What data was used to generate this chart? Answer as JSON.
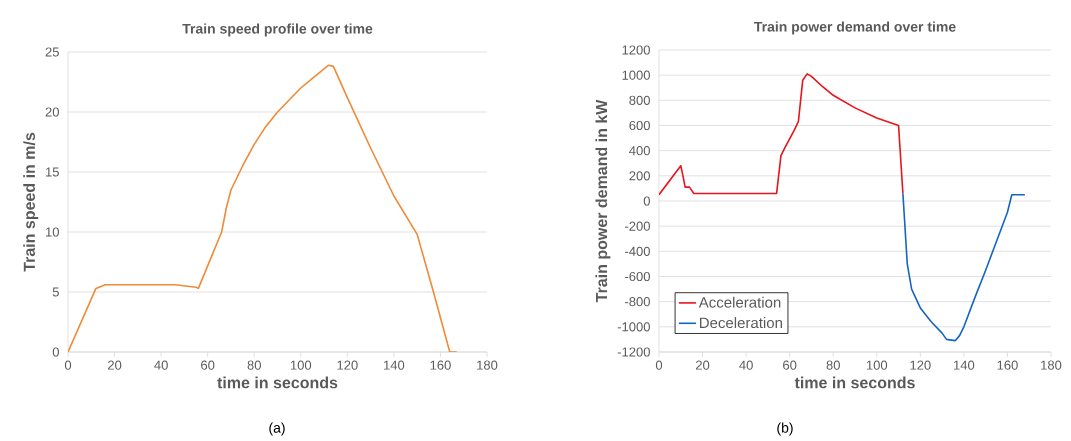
{
  "chart_data": [
    {
      "type": "line",
      "title": "Train speed profile over time",
      "xlabel": "time in seconds",
      "ylabel": "Train speed in m/s",
      "annotations": [
        "(a)"
      ],
      "xlim": [
        0,
        180
      ],
      "ylim": [
        0,
        25
      ],
      "xticks": [
        0,
        20,
        40,
        60,
        80,
        100,
        120,
        140,
        160,
        180
      ],
      "yticks": [
        0,
        5,
        10,
        15,
        20,
        25
      ],
      "grid": "y",
      "series": [
        {
          "color": "#f08a36",
          "x": [
            0,
            12,
            16,
            46,
            55,
            56,
            66,
            68,
            70,
            75,
            80,
            85,
            90,
            95,
            100,
            105,
            110,
            112,
            114,
            120,
            130,
            140,
            150,
            157,
            164,
            167
          ],
          "values": [
            0,
            5.3,
            5.6,
            5.6,
            5.4,
            5.3,
            10,
            12,
            13.5,
            15.5,
            17.3,
            18.8,
            20,
            21,
            22,
            22.8,
            23.6,
            23.9,
            23.8,
            21.2,
            17,
            13,
            9.8,
            5,
            0,
            0
          ]
        }
      ]
    },
    {
      "type": "line",
      "title": "Train power demand over time",
      "xlabel": "time in seconds",
      "ylabel": "Train power demand in kW",
      "annotations": [
        "(b)"
      ],
      "xlim": [
        0,
        180
      ],
      "ylim": [
        -1200,
        1200
      ],
      "xticks": [
        0,
        20,
        40,
        60,
        80,
        100,
        120,
        140,
        160,
        180
      ],
      "yticks": [
        -1200,
        -1000,
        -800,
        -600,
        -400,
        -200,
        0,
        200,
        400,
        600,
        800,
        1000,
        1200
      ],
      "grid": "y",
      "legend": "bottom left",
      "series": [
        {
          "name": "Acceleration",
          "color": "#e8141b",
          "x": [
            0,
            10,
            11,
            12,
            14,
            16,
            54,
            56,
            58,
            62,
            64,
            66,
            68,
            70,
            75,
            80,
            90,
            100,
            110,
            112
          ],
          "values": [
            50,
            280,
            200,
            110,
            110,
            60,
            60,
            360,
            430,
            560,
            630,
            960,
            1010,
            990,
            910,
            840,
            740,
            660,
            600,
            60
          ]
        },
        {
          "name": "Deceleration",
          "color": "#1565c0",
          "x": [
            112,
            114,
            116,
            120,
            125,
            130,
            132,
            136,
            138,
            140,
            145,
            150,
            155,
            160,
            162,
            168
          ],
          "values": [
            60,
            -500,
            -700,
            -850,
            -960,
            -1050,
            -1100,
            -1110,
            -1070,
            -1000,
            -770,
            -550,
            -320,
            -90,
            50,
            50
          ]
        }
      ]
    }
  ]
}
